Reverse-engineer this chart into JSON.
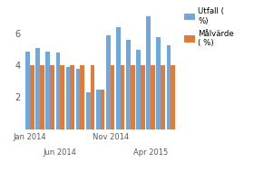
{
  "utfall": [
    4.9,
    5.1,
    4.9,
    4.8,
    3.9,
    3.8,
    2.3,
    2.5,
    5.9,
    6.4,
    5.6,
    5.0,
    7.1,
    5.8,
    5.3
  ],
  "malvarde": [
    4.0,
    4.0,
    4.0,
    4.0,
    4.0,
    4.0,
    4.0,
    2.5,
    4.0,
    4.0,
    4.0,
    4.0,
    4.0,
    4.0,
    4.0
  ],
  "bar_width": 0.42,
  "utfall_color": "#6fa8dc",
  "malvarde_color": "#e07b39",
  "ylim": [
    0,
    7.8
  ],
  "yticks": [
    2,
    4,
    6
  ],
  "bg_color": "#ffffff",
  "n": 15,
  "row1_ticks": [
    0,
    8
  ],
  "row1_labels": [
    "Jan 2014",
    "Nov 2014"
  ],
  "row2_ticks": [
    3,
    12
  ],
  "row2_labels": [
    "Jun 2014",
    "Apr 2015"
  ],
  "legend_labels": [
    "Utfall (\n%)",
    "Målvärde\n( %)"
  ],
  "ytick_fontsize": 7,
  "xtick_fontsize": 6.0
}
